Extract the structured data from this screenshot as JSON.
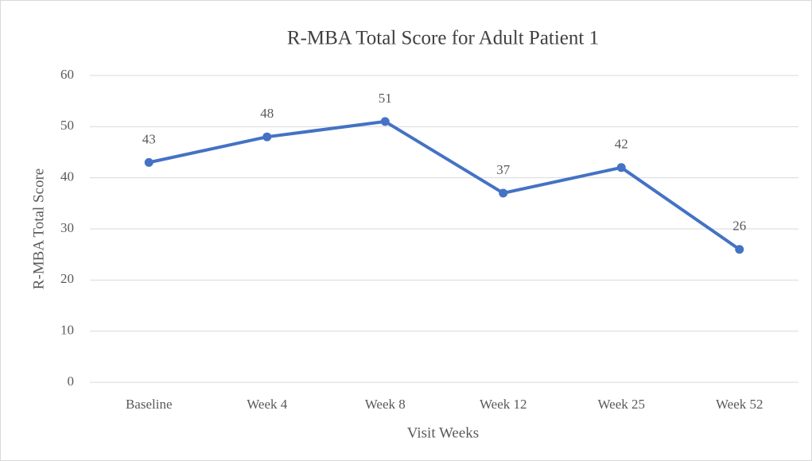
{
  "chart_data": {
    "type": "line",
    "title": "R-MBA Total Score for Adult Patient 1",
    "xlabel": "Visit Weeks",
    "ylabel": "R-MBA Total Score",
    "categories": [
      "Baseline",
      "Week 4",
      "Week 8",
      "Week 12",
      "Week 25",
      "Week 52"
    ],
    "values": [
      43,
      48,
      51,
      37,
      42,
      26
    ],
    "color": "#4472c4",
    "ylim": [
      0,
      60
    ],
    "yticks": [
      0,
      10,
      20,
      30,
      40,
      50,
      60
    ],
    "grid": true,
    "data_labels": true
  }
}
